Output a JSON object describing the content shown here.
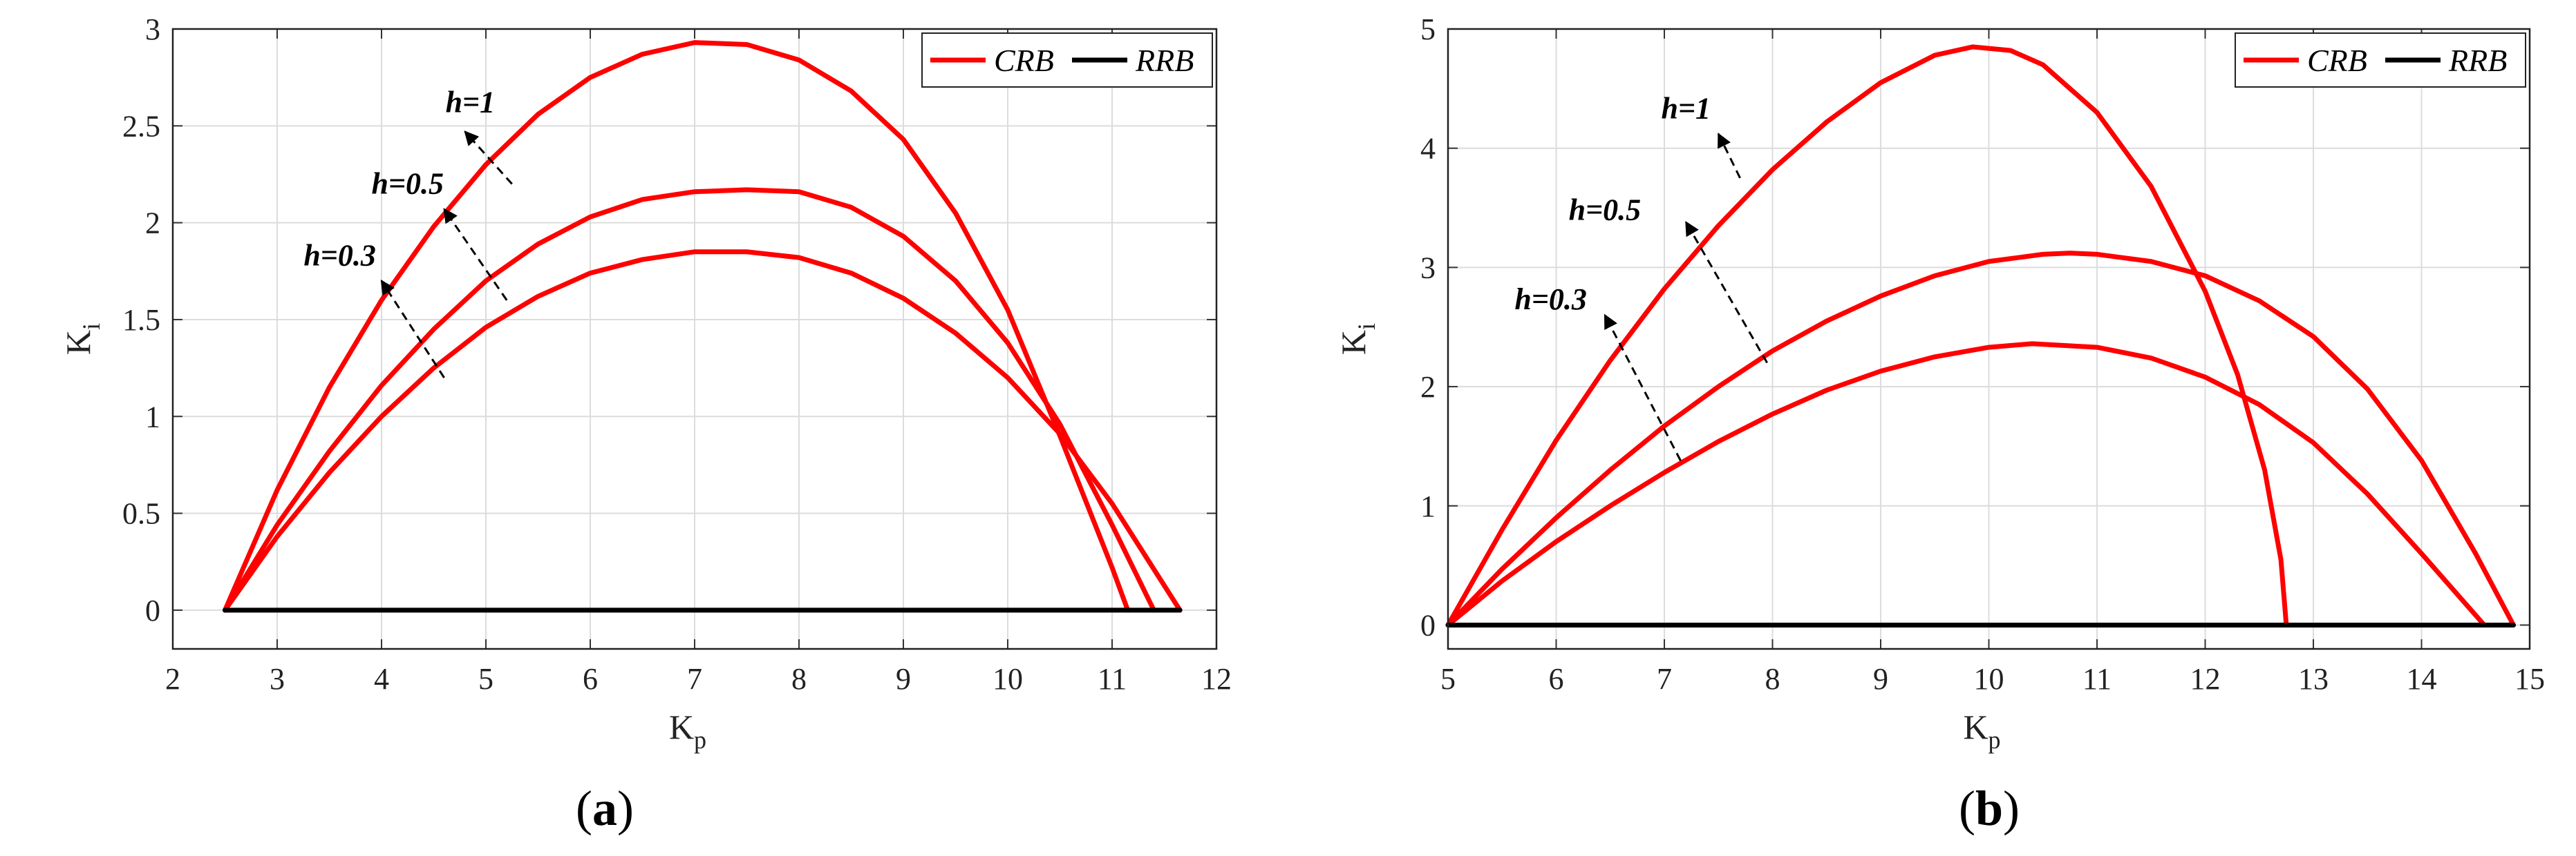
{
  "chart_data": [
    {
      "type": "line",
      "caption": "a",
      "xlabel": "K",
      "xlabel_sub": "p",
      "ylabel": "K",
      "ylabel_sub": "i",
      "xlim": [
        2,
        12
      ],
      "ylim": [
        -0.2,
        3
      ],
      "xticks": [
        2,
        3,
        4,
        5,
        6,
        7,
        8,
        9,
        10,
        11,
        12
      ],
      "yticks": [
        0,
        0.5,
        1,
        1.5,
        2,
        2.5,
        3
      ],
      "ytick_labels": [
        "0",
        "0.5",
        "1",
        "1.5",
        "2",
        "2.5",
        "3"
      ],
      "grid": true,
      "legend_position": "top-right",
      "legend": [
        "CRB",
        "RRB"
      ],
      "colors": {
        "CRB": "#ff0000",
        "RRB": "#000000"
      },
      "series": [
        {
          "name": "CRB",
          "group": "h=1",
          "x": [
            2.5,
            3.0,
            3.5,
            4.0,
            4.5,
            5.0,
            5.5,
            6.0,
            6.5,
            7.0,
            7.5,
            8.0,
            8.5,
            9.0,
            9.5,
            10.0,
            10.5,
            11.0,
            11.15
          ],
          "y": [
            0,
            0.62,
            1.15,
            1.6,
            1.98,
            2.3,
            2.56,
            2.75,
            2.87,
            2.93,
            2.92,
            2.84,
            2.68,
            2.43,
            2.05,
            1.55,
            0.9,
            0.22,
            0
          ]
        },
        {
          "name": "CRB",
          "group": "h=0.5",
          "x": [
            2.5,
            3.0,
            3.5,
            4.0,
            4.5,
            5.0,
            5.5,
            6.0,
            6.5,
            7.0,
            7.5,
            8.0,
            8.5,
            9.0,
            9.5,
            10.0,
            10.5,
            11.0,
            11.4
          ],
          "y": [
            0,
            0.44,
            0.82,
            1.16,
            1.45,
            1.7,
            1.89,
            2.03,
            2.12,
            2.16,
            2.17,
            2.16,
            2.08,
            1.93,
            1.7,
            1.38,
            0.96,
            0.44,
            0
          ]
        },
        {
          "name": "CRB",
          "group": "h=0.3",
          "x": [
            2.5,
            3.0,
            3.5,
            4.0,
            4.5,
            5.0,
            5.5,
            6.0,
            6.5,
            7.0,
            7.5,
            8.0,
            8.5,
            9.0,
            9.5,
            10.0,
            10.5,
            11.0,
            11.65
          ],
          "y": [
            0,
            0.38,
            0.71,
            1.0,
            1.25,
            1.46,
            1.62,
            1.74,
            1.81,
            1.85,
            1.85,
            1.82,
            1.74,
            1.61,
            1.43,
            1.2,
            0.91,
            0.55,
            0
          ]
        },
        {
          "name": "RRB",
          "x": [
            2.5,
            11.65
          ],
          "y": [
            0,
            0
          ]
        }
      ],
      "annotations": [
        {
          "text": "h=1",
          "x": 4.85,
          "y": 2.57,
          "arrow_from": [
            5.25,
            2.2
          ],
          "arrow_to": [
            4.8,
            2.47
          ]
        },
        {
          "text": "h=0.5",
          "x": 4.25,
          "y": 2.15,
          "arrow_from": [
            5.2,
            1.6
          ],
          "arrow_to": [
            4.6,
            2.07
          ]
        },
        {
          "text": "h=0.3",
          "x": 3.6,
          "y": 1.78,
          "arrow_from": [
            4.6,
            1.2
          ],
          "arrow_to": [
            4.0,
            1.7
          ]
        }
      ]
    },
    {
      "type": "line",
      "caption": "b",
      "xlabel": "K",
      "xlabel_sub": "p",
      "ylabel": "K",
      "ylabel_sub": "i",
      "xlim": [
        5,
        15
      ],
      "ylim": [
        -0.2,
        5
      ],
      "xticks": [
        5,
        6,
        7,
        8,
        9,
        10,
        11,
        12,
        13,
        14,
        15
      ],
      "yticks": [
        0,
        1,
        2,
        3,
        4,
        5
      ],
      "ytick_labels": [
        "0",
        "1",
        "2",
        "3",
        "4",
        "5"
      ],
      "grid": true,
      "legend_position": "top-right",
      "legend": [
        "CRB",
        "RRB"
      ],
      "colors": {
        "CRB": "#ff0000",
        "RRB": "#000000"
      },
      "series": [
        {
          "name": "CRB",
          "group": "h=1",
          "x": [
            5.0,
            5.5,
            6.0,
            6.5,
            7.0,
            7.5,
            8.0,
            8.5,
            9.0,
            9.5,
            9.85,
            10.2,
            10.5,
            11.0,
            11.5,
            12.0,
            12.3,
            12.55,
            12.7,
            12.75
          ],
          "y": [
            0,
            0.8,
            1.55,
            2.22,
            2.82,
            3.35,
            3.82,
            4.22,
            4.55,
            4.78,
            4.85,
            4.82,
            4.7,
            4.3,
            3.68,
            2.8,
            2.1,
            1.3,
            0.55,
            0
          ]
        },
        {
          "name": "CRB",
          "group": "h=0.5",
          "x": [
            5.0,
            5.5,
            6.0,
            6.5,
            7.0,
            7.5,
            8.0,
            8.5,
            9.0,
            9.5,
            10.0,
            10.5,
            10.75,
            11.0,
            11.5,
            12.0,
            12.5,
            13.0,
            13.5,
            14.0,
            14.5,
            14.85
          ],
          "y": [
            0,
            0.47,
            0.9,
            1.3,
            1.67,
            2.0,
            2.3,
            2.55,
            2.76,
            2.93,
            3.05,
            3.11,
            3.12,
            3.11,
            3.05,
            2.93,
            2.72,
            2.42,
            1.98,
            1.38,
            0.6,
            0
          ]
        },
        {
          "name": "CRB",
          "group": "h=0.3",
          "x": [
            5.0,
            5.5,
            6.0,
            6.5,
            7.0,
            7.5,
            8.0,
            8.5,
            9.0,
            9.5,
            10.0,
            10.4,
            11.0,
            11.5,
            12.0,
            12.5,
            13.0,
            13.5,
            14.0,
            14.58
          ],
          "y": [
            0,
            0.37,
            0.7,
            1.0,
            1.28,
            1.54,
            1.77,
            1.97,
            2.13,
            2.25,
            2.33,
            2.36,
            2.33,
            2.24,
            2.08,
            1.85,
            1.53,
            1.1,
            0.6,
            0
          ]
        },
        {
          "name": "RRB",
          "x": [
            5.0,
            14.85
          ],
          "y": [
            0,
            0
          ]
        }
      ],
      "annotations": [
        {
          "text": "h=1",
          "x": 7.2,
          "y": 4.25,
          "arrow_from": [
            7.7,
            3.75
          ],
          "arrow_to": [
            7.5,
            4.12
          ]
        },
        {
          "text": "h=0.5",
          "x": 6.45,
          "y": 3.4,
          "arrow_from": [
            7.95,
            2.2
          ],
          "arrow_to": [
            7.2,
            3.38
          ]
        },
        {
          "text": "h=0.3",
          "x": 5.95,
          "y": 2.65,
          "arrow_from": [
            7.15,
            1.38
          ],
          "arrow_to": [
            6.45,
            2.6
          ]
        }
      ]
    }
  ]
}
